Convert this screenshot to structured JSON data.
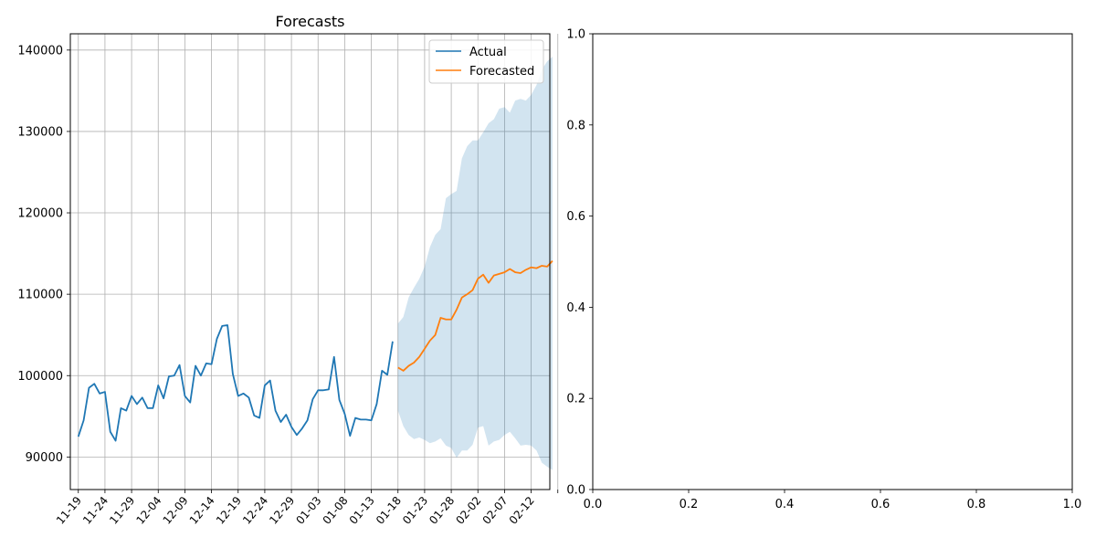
{
  "chart_data": [
    {
      "type": "line",
      "title": "Forecasts",
      "xlabel": "",
      "ylabel": "",
      "legend": {
        "position": "top-right",
        "entries": [
          "Actual",
          "Forecasted"
        ]
      },
      "grid": true,
      "x_start": "2023-11-19",
      "xlim": [
        -1.5,
        88.5
      ],
      "ylim": [
        86000,
        142000
      ],
      "x_ticks": [
        "11-19",
        "11-24",
        "11-29",
        "12-04",
        "12-09",
        "12-14",
        "12-19",
        "12-24",
        "12-29",
        "01-03",
        "01-08",
        "01-13",
        "01-18",
        "01-23",
        "01-28",
        "02-02",
        "02-07",
        "02-12",
        ""
      ],
      "y_ticks": [
        90000,
        100000,
        110000,
        120000,
        130000,
        140000
      ],
      "series": [
        {
          "name": "Actual",
          "color": "#1f77b4",
          "values": [
            92500,
            94500,
            98500,
            99000,
            97800,
            98000,
            93100,
            92000,
            96000,
            95700,
            97500,
            96500,
            97300,
            96000,
            96000,
            98800,
            97200,
            99900,
            100000,
            101300,
            97500,
            96700,
            101200,
            100000,
            101500,
            101400,
            104500,
            106100,
            106200,
            100200,
            97500,
            97800,
            97300,
            95100,
            94800,
            98800,
            99400,
            95700,
            94300,
            95200,
            93700,
            92700,
            93500,
            94500,
            97100,
            98200,
            98200,
            98300,
            102300,
            97000,
            95300,
            92600,
            94800,
            94600,
            94600,
            94500,
            96500,
            100600,
            100100,
            104200
          ],
          "start_index": 0
        },
        {
          "name": "Forecasted",
          "color": "#ff7f0e",
          "values": [
            101000,
            100600,
            101200,
            101600,
            102300,
            103300,
            104300,
            105000,
            107100,
            106900,
            106900,
            108100,
            109600,
            110000,
            110500,
            111900,
            112400,
            111400,
            112300,
            112500,
            112700,
            113100,
            112700,
            112600,
            113000,
            113300,
            113200,
            113500,
            113400,
            114100
          ],
          "upper": [
            106400,
            107200,
            109600,
            110800,
            111900,
            113400,
            115800,
            117300,
            118000,
            121800,
            122300,
            122700,
            126700,
            128200,
            128900,
            128900,
            129900,
            131000,
            131500,
            132800,
            133000,
            132300,
            133800,
            134000,
            133800,
            134500,
            135700,
            137600,
            138600,
            139200
          ],
          "lower": [
            95700,
            93800,
            92700,
            92200,
            92400,
            92100,
            91700,
            91900,
            92300,
            91400,
            91100,
            89900,
            90800,
            90800,
            91500,
            93600,
            93800,
            91400,
            91900,
            92100,
            92700,
            93100,
            92300,
            91400,
            91500,
            91400,
            90800,
            89300,
            88800,
            88400
          ],
          "start_index": 60
        }
      ],
      "band_color": "#1f77b4"
    },
    {
      "type": "line",
      "title": "",
      "xlabel": "",
      "ylabel": "",
      "grid": false,
      "xlim": [
        0,
        1
      ],
      "ylim": [
        0,
        1
      ],
      "x_ticks": [
        "0.0",
        "0.2",
        "0.4",
        "0.6",
        "0.8",
        "1.0"
      ],
      "y_ticks": [
        "0.0",
        "0.2",
        "0.4",
        "0.6",
        "0.8",
        "1.0"
      ],
      "series": []
    }
  ]
}
